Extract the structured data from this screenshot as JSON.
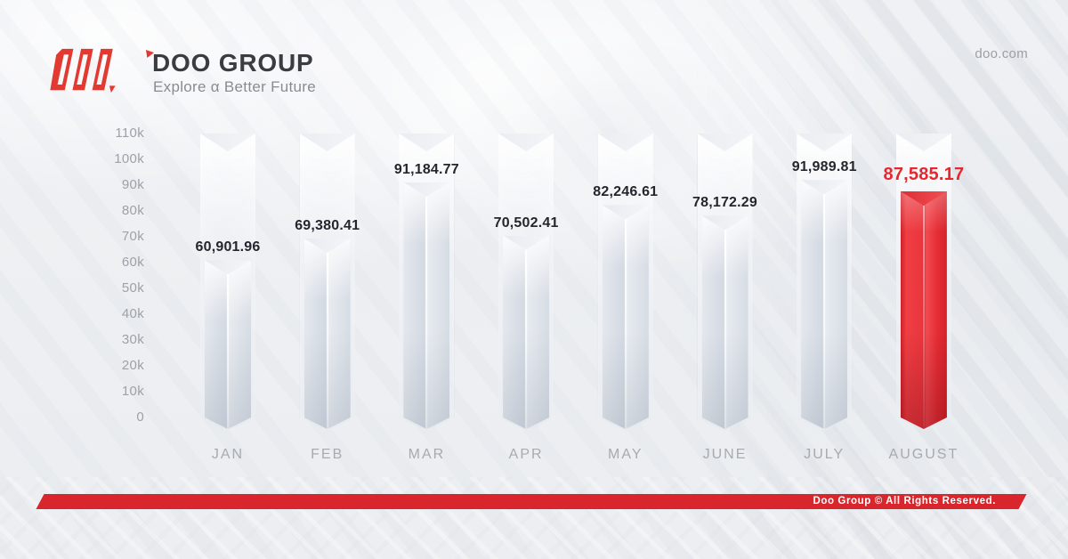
{
  "header": {
    "brand": "DOO GROUP",
    "tagline": "Explore α Better Future",
    "website": "doo.com"
  },
  "chart_data": {
    "type": "bar",
    "title": "",
    "categories": [
      "JAN",
      "FEB",
      "MAR",
      "APR",
      "MAY",
      "JUNE",
      "JULY",
      "AUGUST"
    ],
    "values": [
      60901.96,
      69380.41,
      91184.77,
      70502.41,
      82246.61,
      78172.29,
      91989.81,
      87585.17
    ],
    "value_labels": [
      "60,901.96",
      "69,380.41",
      "91,184.77",
      "70,502.41",
      "82,246.61",
      "78,172.29",
      "91,989.81",
      "87,585.17"
    ],
    "highlight_index": 7,
    "y_ticks": [
      {
        "label": "110k",
        "value": 110000
      },
      {
        "label": "100k",
        "value": 100000
      },
      {
        "label": "90k",
        "value": 90000
      },
      {
        "label": "80k",
        "value": 80000
      },
      {
        "label": "70k",
        "value": 70000
      },
      {
        "label": "60k",
        "value": 60000
      },
      {
        "label": "50k",
        "value": 50000
      },
      {
        "label": "40k",
        "value": 40000
      },
      {
        "label": "30k",
        "value": 30000
      },
      {
        "label": "20k",
        "value": 20000
      },
      {
        "label": "10k",
        "value": 10000
      },
      {
        "label": "0",
        "value": 0
      }
    ],
    "ylim": [
      0,
      110000
    ],
    "grid": false,
    "legend": "none",
    "bar_color": "#d9dee6",
    "highlight_color": "#e8262d",
    "layout": {
      "zero_y": 469,
      "top_y": 150,
      "track_bottom_y": 484,
      "fill_bottom_y": 482,
      "first_bar_center_x": 256,
      "bar_spacing_x": 111.7,
      "track_width": 62,
      "fill_width": 52
    }
  },
  "footer": {
    "copyright": "Doo Group © All Rights Reserved."
  },
  "colors": {
    "logo_red": "#e23a30",
    "footer_red": "#d8262c",
    "value_text": "#24262e",
    "muted_text": "#9da1a8"
  }
}
